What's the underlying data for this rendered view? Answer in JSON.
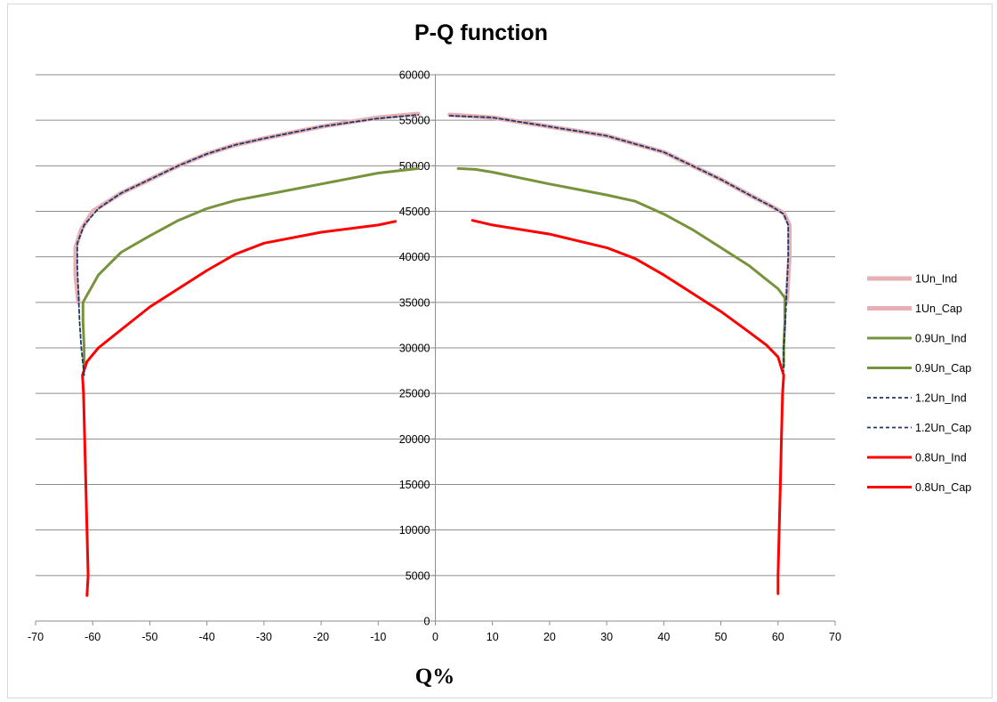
{
  "chart_data": {
    "type": "line",
    "title": "P-Q function",
    "xlabel": "Q%",
    "ylabel": "",
    "xlim": [
      -70,
      70
    ],
    "ylim": [
      0,
      60000
    ],
    "xticks": [
      -70,
      -60,
      -50,
      -40,
      -30,
      -20,
      -10,
      0,
      10,
      20,
      30,
      40,
      50,
      60,
      70
    ],
    "yticks": [
      0,
      5000,
      10000,
      15000,
      20000,
      25000,
      30000,
      35000,
      40000,
      45000,
      50000,
      55000,
      60000
    ],
    "grid": "horizontal",
    "legend_position": "right",
    "series": [
      {
        "name": "1Un_Ind",
        "color": "#e6b0b4",
        "style": "solid-thick",
        "points": [
          [
            -62.5,
            35000
          ],
          [
            -63,
            38000
          ],
          [
            -63,
            41000
          ],
          [
            -62,
            43000
          ],
          [
            -60,
            45000
          ],
          [
            -55,
            47000
          ],
          [
            -50,
            48500
          ],
          [
            -45,
            50000
          ],
          [
            -40,
            51300
          ],
          [
            -35,
            52300
          ],
          [
            -30,
            53000
          ],
          [
            -20,
            54300
          ],
          [
            -10,
            55300
          ],
          [
            -3,
            55700
          ]
        ]
      },
      {
        "name": "1Un_Cap",
        "color": "#e6b0b4",
        "style": "solid-thick",
        "points": [
          [
            2.5,
            55600
          ],
          [
            10,
            55300
          ],
          [
            20,
            54300
          ],
          [
            30,
            53300
          ],
          [
            40,
            51500
          ],
          [
            50,
            48500
          ],
          [
            55,
            46800
          ],
          [
            59,
            45500
          ],
          [
            61,
            44800
          ],
          [
            62,
            43500
          ],
          [
            62,
            40000
          ],
          [
            61.7,
            37000
          ],
          [
            61.5,
            35000
          ]
        ]
      },
      {
        "name": "0.9Un_Ind",
        "color": "#77933c",
        "style": "solid",
        "points": [
          [
            -61.5,
            27500
          ],
          [
            -61.5,
            30000
          ],
          [
            -61.7,
            33000
          ],
          [
            -61.7,
            35000
          ],
          [
            -59,
            38000
          ],
          [
            -55,
            40500
          ],
          [
            -50,
            42300
          ],
          [
            -45,
            44000
          ],
          [
            -40,
            45300
          ],
          [
            -35,
            46200
          ],
          [
            -30,
            46800
          ],
          [
            -20,
            48000
          ],
          [
            -10,
            49200
          ],
          [
            -3,
            49700
          ]
        ]
      },
      {
        "name": "0.9Un_Cap",
        "color": "#77933c",
        "style": "solid",
        "points": [
          [
            4,
            49700
          ],
          [
            7,
            49600
          ],
          [
            10,
            49300
          ],
          [
            20,
            48000
          ],
          [
            30,
            46800
          ],
          [
            35,
            46100
          ],
          [
            40,
            44700
          ],
          [
            45,
            43000
          ],
          [
            50,
            41000
          ],
          [
            55,
            39000
          ],
          [
            58,
            37500
          ],
          [
            60,
            36500
          ],
          [
            61.2,
            35500
          ],
          [
            61.2,
            33000
          ],
          [
            61,
            30000
          ],
          [
            61,
            28000
          ]
        ]
      },
      {
        "name": "1.2Un_Ind",
        "color": "#1f3864",
        "style": "dashed",
        "points": [
          [
            -61.5,
            27000
          ],
          [
            -62,
            30000
          ],
          [
            -62.3,
            33000
          ],
          [
            -62.5,
            36000
          ],
          [
            -62.7,
            39000
          ],
          [
            -62.7,
            41500
          ],
          [
            -61.5,
            43500
          ],
          [
            -59,
            45300
          ],
          [
            -55,
            47000
          ],
          [
            -50,
            48500
          ],
          [
            -45,
            50000
          ],
          [
            -40,
            51300
          ],
          [
            -35,
            52300
          ],
          [
            -30,
            53000
          ],
          [
            -20,
            54300
          ],
          [
            -10,
            55200
          ],
          [
            -3,
            55600
          ]
        ]
      },
      {
        "name": "1.2Un_Cap",
        "color": "#1f3864",
        "style": "dashed",
        "points": [
          [
            2.5,
            55500
          ],
          [
            10,
            55300
          ],
          [
            20,
            54300
          ],
          [
            30,
            53300
          ],
          [
            40,
            51500
          ],
          [
            50,
            48500
          ],
          [
            55,
            46800
          ],
          [
            59,
            45500
          ],
          [
            61,
            44700
          ],
          [
            61.8,
            43500
          ],
          [
            61.8,
            40000
          ],
          [
            61.5,
            36000
          ],
          [
            61.3,
            33000
          ],
          [
            61,
            30000
          ],
          [
            61,
            27500
          ]
        ]
      },
      {
        "name": "0.8Un_Ind",
        "color": "#ff0000",
        "style": "solid",
        "points": [
          [
            -61,
            2800
          ],
          [
            -60.8,
            5000
          ],
          [
            -61,
            10000
          ],
          [
            -61.2,
            15000
          ],
          [
            -61.4,
            20000
          ],
          [
            -61.6,
            25000
          ],
          [
            -61.8,
            27000
          ],
          [
            -61,
            28500
          ],
          [
            -59,
            30000
          ],
          [
            -55,
            32000
          ],
          [
            -50,
            34500
          ],
          [
            -45,
            36500
          ],
          [
            -40,
            38500
          ],
          [
            -35,
            40300
          ],
          [
            -30,
            41500
          ],
          [
            -20,
            42700
          ],
          [
            -10,
            43500
          ],
          [
            -7,
            43900
          ]
        ]
      },
      {
        "name": "0.8Un_Cap",
        "color": "#ff0000",
        "style": "solid",
        "points": [
          [
            6.5,
            44000
          ],
          [
            10,
            43500
          ],
          [
            20,
            42500
          ],
          [
            30,
            41000
          ],
          [
            35,
            39800
          ],
          [
            40,
            38000
          ],
          [
            45,
            36000
          ],
          [
            50,
            34000
          ],
          [
            55,
            31700
          ],
          [
            58,
            30300
          ],
          [
            60,
            29000
          ],
          [
            61,
            27000
          ],
          [
            60.8,
            25000
          ],
          [
            60.6,
            20000
          ],
          [
            60.4,
            15000
          ],
          [
            60.2,
            10000
          ],
          [
            60,
            5000
          ],
          [
            60,
            3000
          ]
        ]
      }
    ]
  }
}
